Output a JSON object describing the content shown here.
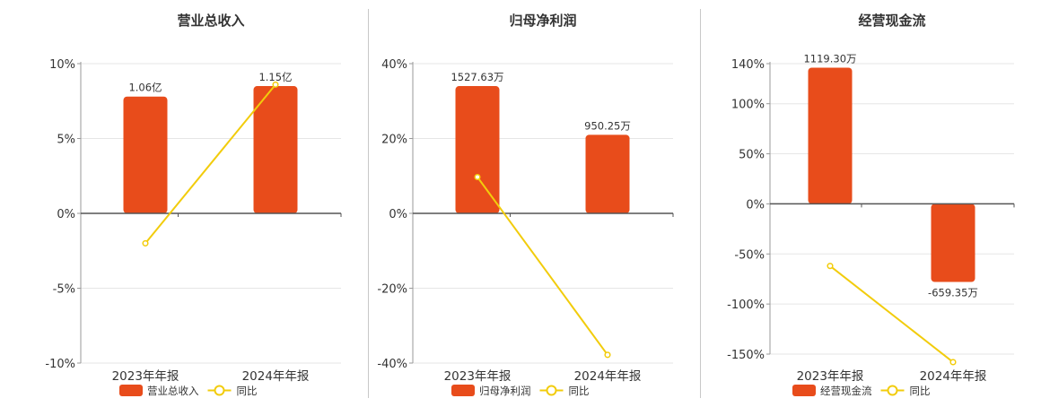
{
  "colors": {
    "bar": "#e84c1b",
    "line": "#f2cc0c",
    "axis": "#555555",
    "grid": "#e6e6e6",
    "text": "#333333"
  },
  "chart_data": [
    {
      "type": "bar",
      "title": "营业总收入",
      "categories": [
        "2023年年报",
        "2024年年报"
      ],
      "ylim": [
        -10,
        10
      ],
      "yticks": [
        "10%",
        "5%",
        "0%",
        "-5%",
        "-10%"
      ],
      "ytick_values": [
        10,
        5,
        0,
        -5,
        -10
      ],
      "series": [
        {
          "name": "营业总收入",
          "kind": "bar",
          "values": [
            7.8,
            8.5
          ],
          "labels": [
            "1.06亿",
            "1.15亿"
          ]
        },
        {
          "name": "同比",
          "kind": "line",
          "values": [
            -2.0,
            8.6
          ]
        }
      ]
    },
    {
      "type": "bar",
      "title": "归母净利润",
      "categories": [
        "2023年年报",
        "2024年年报"
      ],
      "ylim": [
        -40,
        40
      ],
      "yticks": [
        "40%",
        "20%",
        "0%",
        "-20%",
        "-40%"
      ],
      "ytick_values": [
        40,
        20,
        0,
        -20,
        -40
      ],
      "series": [
        {
          "name": "归母净利润",
          "kind": "bar",
          "values": [
            34,
            21
          ],
          "labels": [
            "1527.63万",
            "950.25万"
          ]
        },
        {
          "name": "同比",
          "kind": "line",
          "values": [
            9.7,
            -37.8
          ]
        }
      ]
    },
    {
      "type": "bar",
      "title": "经营现金流",
      "categories": [
        "2023年年报",
        "2024年年报"
      ],
      "ylim": [
        -160,
        140
      ],
      "yticks": [
        "140%",
        "100%",
        "50%",
        "0%",
        "-50%",
        "-100%",
        "-150%"
      ],
      "ytick_values": [
        140,
        100,
        50,
        0,
        -50,
        -100,
        -150
      ],
      "series": [
        {
          "name": "经营现金流",
          "kind": "bar",
          "values": [
            136,
            -78
          ],
          "labels": [
            "1119.30万",
            "-659.35万"
          ]
        },
        {
          "name": "同比",
          "kind": "line",
          "values": [
            -62,
            -158
          ]
        }
      ]
    }
  ]
}
